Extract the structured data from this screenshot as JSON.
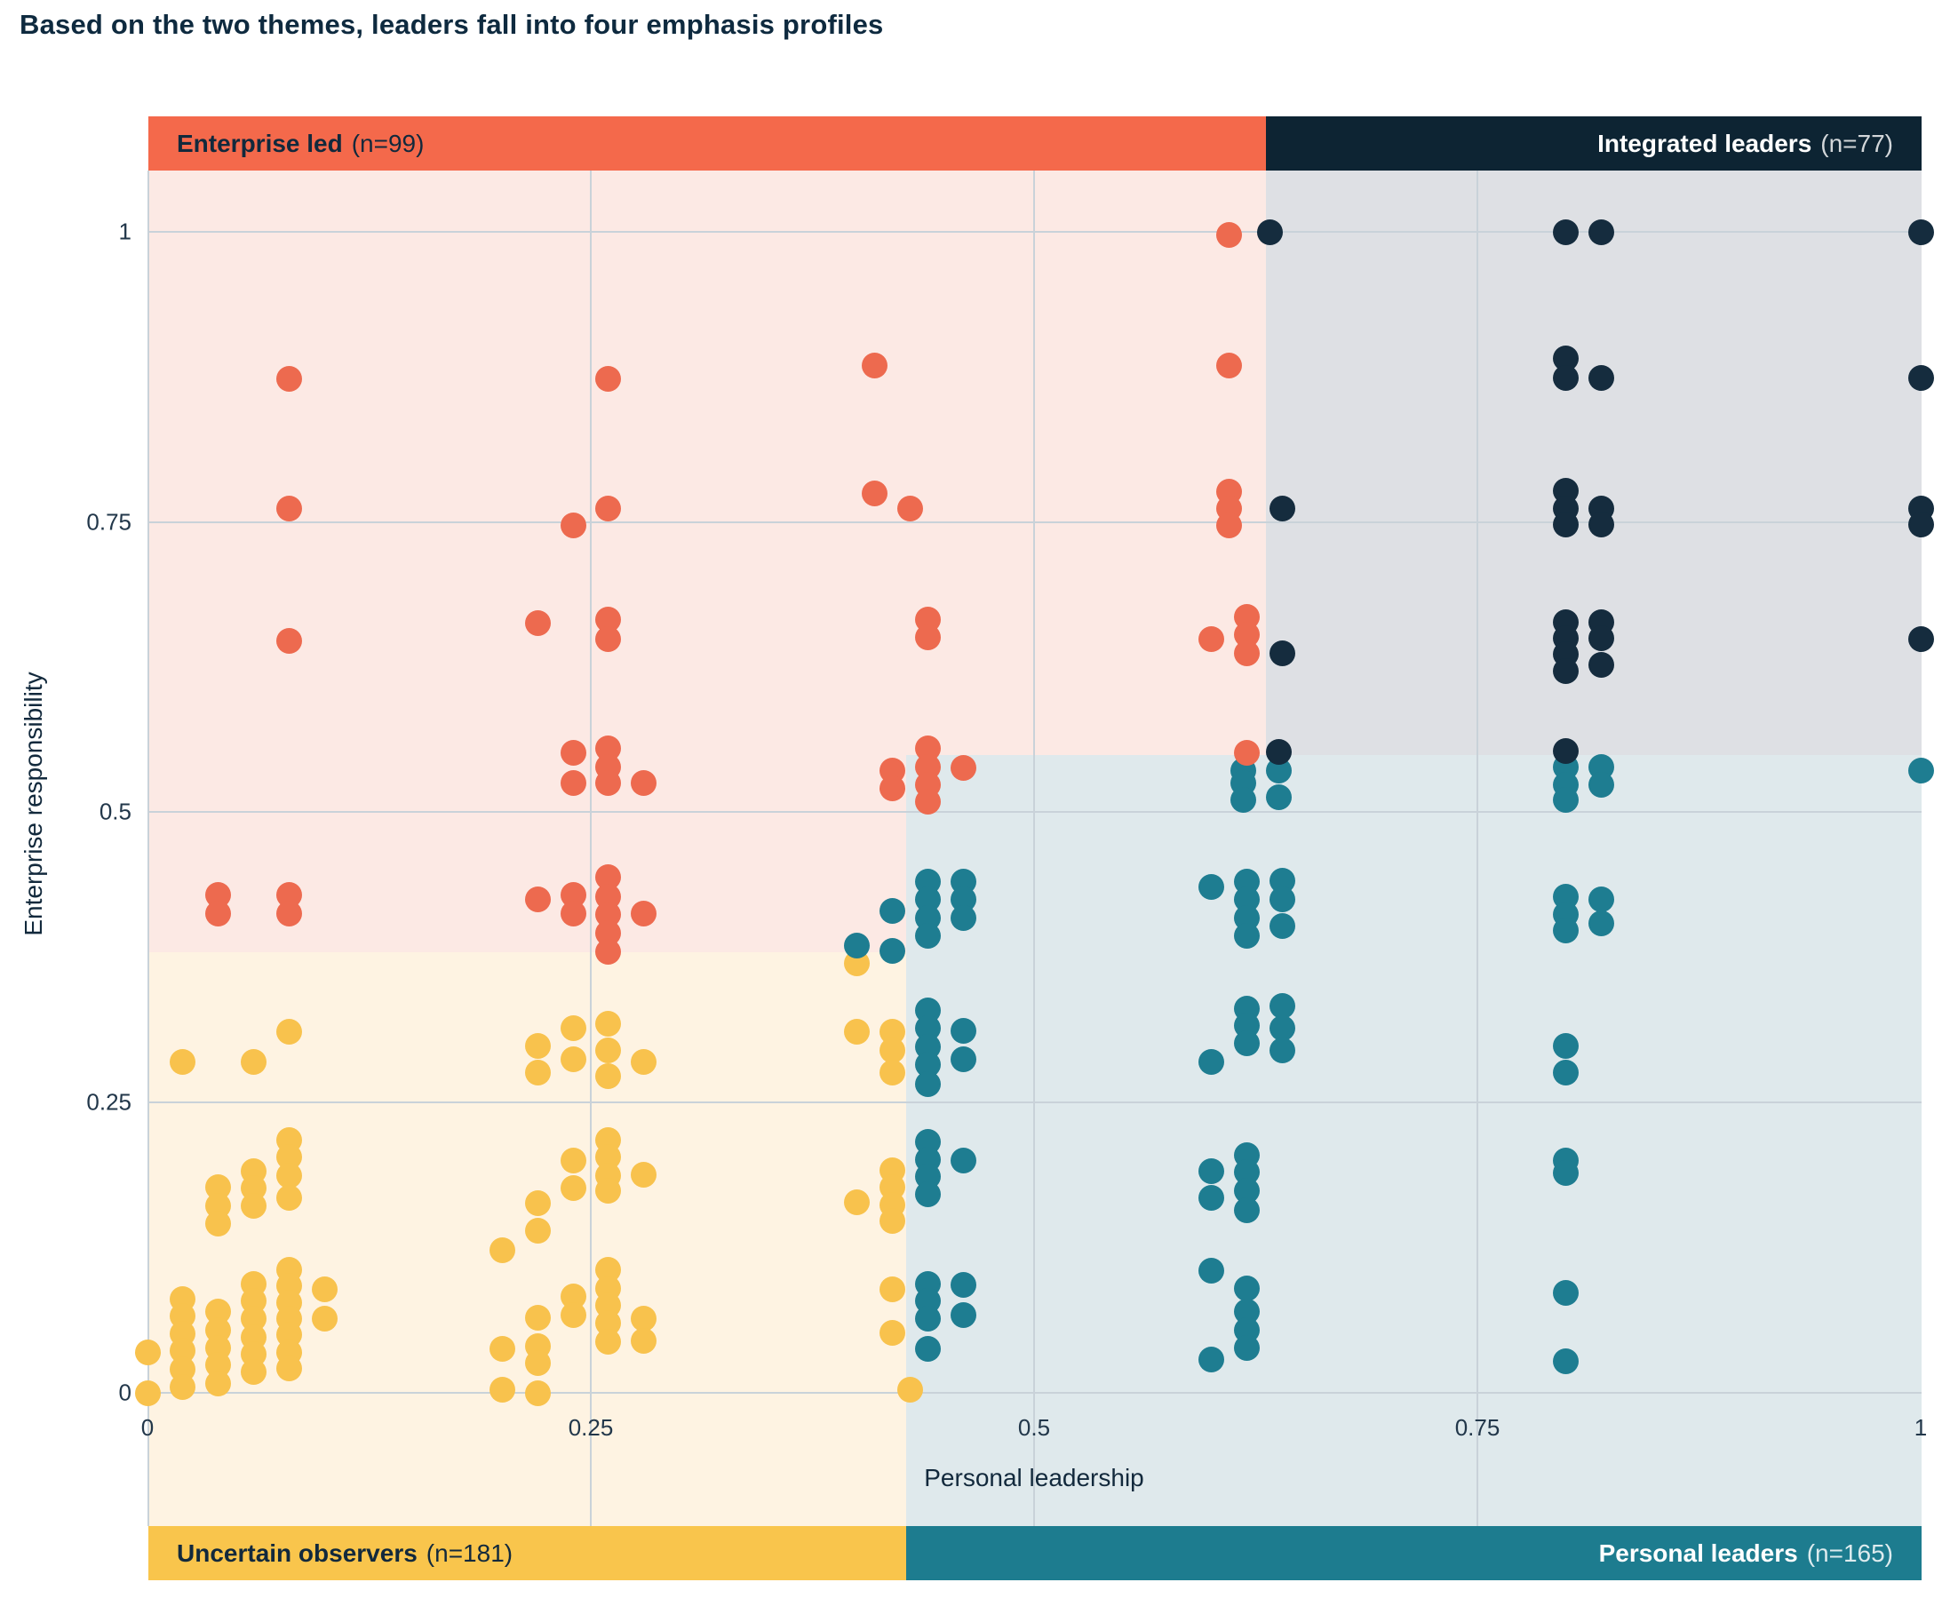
{
  "title": "Based on the two themes, leaders fall into four emphasis profiles",
  "axes": {
    "x_label": "Personal leadership",
    "y_label": "Enterprise responsibility",
    "x_ticks": [
      "0",
      "0.25",
      "0.5",
      "0.75",
      "1"
    ],
    "y_ticks": [
      "1",
      "0.75",
      "0.5",
      "0.25",
      "0"
    ]
  },
  "quadrants": {
    "enterprise_led": {
      "label": "Enterprise led",
      "n_label": "(n=99)",
      "band_color": "#f4694b",
      "fill_color": "#fce9e4"
    },
    "integrated_leaders": {
      "label": "Integrated leaders",
      "n_label": "(n=77)",
      "band_color": "#0d2433",
      "fill_color": "#dee0e4"
    },
    "uncertain_observers": {
      "label": "Uncertain observers",
      "n_label": "(n=181)",
      "band_color": "#f9c54c",
      "fill_color": "#fef3e2"
    },
    "personal_leaders": {
      "label": "Personal leaders",
      "n_label": "(n=165)",
      "band_color": "#1d7c8f",
      "fill_color": "#dfe9ec"
    }
  },
  "colors": {
    "title_text": "#0e2a3f",
    "gridline": "#c9d2d9",
    "dot_orange": "#ed6a4f",
    "dot_navy": "#152c3e",
    "dot_teal": "#1e7d91",
    "dot_yellow": "#f8c24d"
  },
  "chart_data": {
    "type": "scatter",
    "title": "Based on the two themes, leaders fall into four emphasis profiles",
    "xlabel": "Personal leadership",
    "ylabel": "Enterprise responsibility",
    "xlim": [
      0,
      1
    ],
    "ylim": [
      0,
      1
    ],
    "x_ticks": [
      0,
      0.25,
      0.5,
      0.75,
      1
    ],
    "y_ticks": [
      0,
      0.25,
      0.5,
      0.75,
      1
    ],
    "grid": true,
    "legend_position": "quadrant-bands",
    "quadrant_thresholds": {
      "top_x_split": 0.63,
      "bottom_x_split": 0.427,
      "left_y_split": 0.376,
      "right_y_split": 0.548
    },
    "series": [
      {
        "name": "Uncertain observers",
        "n": 181,
        "color": "#f8c24d",
        "points": [
          [
            0.02,
            0.285
          ],
          [
            0.06,
            0.285
          ],
          [
            0.08,
            0.311
          ],
          [
            0.22,
            0.299
          ],
          [
            0.22,
            0.276
          ],
          [
            0.24,
            0.314
          ],
          [
            0.24,
            0.287
          ],
          [
            0.26,
            0.318
          ],
          [
            0.26,
            0.295
          ],
          [
            0.26,
            0.273
          ],
          [
            0.28,
            0.285
          ],
          [
            0.4,
            0.311
          ],
          [
            0.42,
            0.311
          ],
          [
            0.42,
            0.295
          ],
          [
            0.42,
            0.276
          ],
          [
            0.4,
            0.37
          ],
          [
            0.04,
            0.177
          ],
          [
            0.04,
            0.161
          ],
          [
            0.04,
            0.146
          ],
          [
            0.06,
            0.191
          ],
          [
            0.06,
            0.176
          ],
          [
            0.06,
            0.161
          ],
          [
            0.08,
            0.218
          ],
          [
            0.08,
            0.203
          ],
          [
            0.08,
            0.187
          ],
          [
            0.08,
            0.168
          ],
          [
            0.22,
            0.163
          ],
          [
            0.24,
            0.2
          ],
          [
            0.24,
            0.176
          ],
          [
            0.26,
            0.218
          ],
          [
            0.26,
            0.203
          ],
          [
            0.26,
            0.187
          ],
          [
            0.26,
            0.174
          ],
          [
            0.28,
            0.188
          ],
          [
            0.2,
            0.123
          ],
          [
            0.22,
            0.14
          ],
          [
            0.4,
            0.164
          ],
          [
            0.42,
            0.192
          ],
          [
            0.42,
            0.177
          ],
          [
            0.42,
            0.162
          ],
          [
            0.42,
            0.148
          ],
          [
            0.0,
            0.035
          ],
          [
            0.0,
            0.0
          ],
          [
            0.02,
            0.081
          ],
          [
            0.02,
            0.066
          ],
          [
            0.02,
            0.051
          ],
          [
            0.02,
            0.036
          ],
          [
            0.02,
            0.02
          ],
          [
            0.02,
            0.005
          ],
          [
            0.04,
            0.07
          ],
          [
            0.04,
            0.054
          ],
          [
            0.04,
            0.039
          ],
          [
            0.04,
            0.024
          ],
          [
            0.04,
            0.008
          ],
          [
            0.06,
            0.094
          ],
          [
            0.06,
            0.079
          ],
          [
            0.06,
            0.064
          ],
          [
            0.06,
            0.048
          ],
          [
            0.06,
            0.033
          ],
          [
            0.06,
            0.018
          ],
          [
            0.08,
            0.106
          ],
          [
            0.08,
            0.092
          ],
          [
            0.08,
            0.078
          ],
          [
            0.08,
            0.064
          ],
          [
            0.08,
            0.05
          ],
          [
            0.08,
            0.035
          ],
          [
            0.08,
            0.021
          ],
          [
            0.1,
            0.089
          ],
          [
            0.1,
            0.064
          ],
          [
            0.2,
            0.038
          ],
          [
            0.2,
            0.003
          ],
          [
            0.22,
            0.065
          ],
          [
            0.22,
            0.04
          ],
          [
            0.22,
            0.026
          ],
          [
            0.22,
            0.0
          ],
          [
            0.24,
            0.083
          ],
          [
            0.24,
            0.067
          ],
          [
            0.26,
            0.106
          ],
          [
            0.26,
            0.09
          ],
          [
            0.26,
            0.075
          ],
          [
            0.26,
            0.06
          ],
          [
            0.26,
            0.044
          ],
          [
            0.28,
            0.064
          ],
          [
            0.28,
            0.045
          ],
          [
            0.42,
            0.089
          ],
          [
            0.42,
            0.052
          ],
          [
            0.43,
            0.003
          ]
        ]
      },
      {
        "name": "Personal leaders",
        "n": 165,
        "color": "#1e7d91",
        "points": [
          [
            0.618,
            0.536
          ],
          [
            0.618,
            0.525
          ],
          [
            0.618,
            0.511
          ],
          [
            0.638,
            0.536
          ],
          [
            0.638,
            0.513
          ],
          [
            0.8,
            0.539
          ],
          [
            0.8,
            0.524
          ],
          [
            0.8,
            0.511
          ],
          [
            0.82,
            0.539
          ],
          [
            0.82,
            0.524
          ],
          [
            1.0,
            0.536
          ],
          [
            0.4,
            0.385
          ],
          [
            0.42,
            0.415
          ],
          [
            0.42,
            0.381
          ],
          [
            0.44,
            0.44
          ],
          [
            0.44,
            0.425
          ],
          [
            0.44,
            0.409
          ],
          [
            0.44,
            0.394
          ],
          [
            0.46,
            0.44
          ],
          [
            0.46,
            0.425
          ],
          [
            0.46,
            0.409
          ],
          [
            0.6,
            0.436
          ],
          [
            0.62,
            0.44
          ],
          [
            0.62,
            0.425
          ],
          [
            0.62,
            0.409
          ],
          [
            0.62,
            0.394
          ],
          [
            0.64,
            0.441
          ],
          [
            0.64,
            0.425
          ],
          [
            0.64,
            0.402
          ],
          [
            0.8,
            0.427
          ],
          [
            0.8,
            0.412
          ],
          [
            0.8,
            0.398
          ],
          [
            0.82,
            0.425
          ],
          [
            0.82,
            0.404
          ],
          [
            0.44,
            0.329
          ],
          [
            0.44,
            0.314
          ],
          [
            0.44,
            0.298
          ],
          [
            0.44,
            0.283
          ],
          [
            0.44,
            0.266
          ],
          [
            0.46,
            0.312
          ],
          [
            0.46,
            0.287
          ],
          [
            0.62,
            0.331
          ],
          [
            0.62,
            0.316
          ],
          [
            0.62,
            0.301
          ],
          [
            0.64,
            0.333
          ],
          [
            0.64,
            0.314
          ],
          [
            0.64,
            0.295
          ],
          [
            0.6,
            0.285
          ],
          [
            0.8,
            0.299
          ],
          [
            0.8,
            0.276
          ],
          [
            0.44,
            0.216
          ],
          [
            0.44,
            0.201
          ],
          [
            0.44,
            0.186
          ],
          [
            0.44,
            0.171
          ],
          [
            0.46,
            0.2
          ],
          [
            0.6,
            0.191
          ],
          [
            0.6,
            0.168
          ],
          [
            0.62,
            0.205
          ],
          [
            0.62,
            0.19
          ],
          [
            0.62,
            0.174
          ],
          [
            0.62,
            0.157
          ],
          [
            0.8,
            0.2
          ],
          [
            0.8,
            0.189
          ],
          [
            0.44,
            0.094
          ],
          [
            0.44,
            0.079
          ],
          [
            0.44,
            0.064
          ],
          [
            0.44,
            0.038
          ],
          [
            0.46,
            0.093
          ],
          [
            0.46,
            0.067
          ],
          [
            0.6,
            0.105
          ],
          [
            0.62,
            0.09
          ],
          [
            0.62,
            0.07
          ],
          [
            0.62,
            0.054
          ],
          [
            0.62,
            0.039
          ],
          [
            0.6,
            0.029
          ],
          [
            0.8,
            0.086
          ],
          [
            0.8,
            0.027
          ]
        ]
      },
      {
        "name": "Enterprise led",
        "n": 99,
        "color": "#ed6a4f",
        "points": [
          [
            0.08,
            0.873
          ],
          [
            0.26,
            0.873
          ],
          [
            0.41,
            0.885
          ],
          [
            0.61,
            0.885
          ],
          [
            0.61,
            0.997
          ],
          [
            0.08,
            0.762
          ],
          [
            0.26,
            0.762
          ],
          [
            0.24,
            0.747
          ],
          [
            0.41,
            0.775
          ],
          [
            0.43,
            0.762
          ],
          [
            0.61,
            0.776
          ],
          [
            0.61,
            0.762
          ],
          [
            0.61,
            0.747
          ],
          [
            0.08,
            0.648
          ],
          [
            0.22,
            0.663
          ],
          [
            0.26,
            0.666
          ],
          [
            0.26,
            0.649
          ],
          [
            0.44,
            0.666
          ],
          [
            0.44,
            0.651
          ],
          [
            0.6,
            0.649
          ],
          [
            0.62,
            0.668
          ],
          [
            0.62,
            0.653
          ],
          [
            0.62,
            0.637
          ],
          [
            0.24,
            0.551
          ],
          [
            0.24,
            0.525
          ],
          [
            0.26,
            0.555
          ],
          [
            0.26,
            0.539
          ],
          [
            0.26,
            0.525
          ],
          [
            0.28,
            0.525
          ],
          [
            0.42,
            0.536
          ],
          [
            0.42,
            0.521
          ],
          [
            0.44,
            0.555
          ],
          [
            0.44,
            0.539
          ],
          [
            0.44,
            0.524
          ],
          [
            0.44,
            0.509
          ],
          [
            0.46,
            0.538
          ],
          [
            0.62,
            0.551
          ],
          [
            0.04,
            0.429
          ],
          [
            0.04,
            0.413
          ],
          [
            0.08,
            0.429
          ],
          [
            0.08,
            0.413
          ],
          [
            0.22,
            0.425
          ],
          [
            0.24,
            0.429
          ],
          [
            0.24,
            0.413
          ],
          [
            0.26,
            0.444
          ],
          [
            0.26,
            0.427
          ],
          [
            0.26,
            0.412
          ],
          [
            0.26,
            0.396
          ],
          [
            0.26,
            0.38
          ],
          [
            0.28,
            0.413
          ]
        ]
      },
      {
        "name": "Integrated leaders",
        "n": 77,
        "color": "#152c3e",
        "points": [
          [
            0.633,
            1.0
          ],
          [
            0.8,
            1.0
          ],
          [
            0.82,
            1.0
          ],
          [
            1.0,
            1.0
          ],
          [
            0.8,
            0.891
          ],
          [
            0.8,
            0.874
          ],
          [
            0.82,
            0.874
          ],
          [
            1.0,
            0.874
          ],
          [
            0.8,
            0.777
          ],
          [
            0.8,
            0.762
          ],
          [
            0.8,
            0.748
          ],
          [
            0.82,
            0.762
          ],
          [
            0.82,
            0.748
          ],
          [
            1.0,
            0.762
          ],
          [
            1.0,
            0.748
          ],
          [
            0.64,
            0.762
          ],
          [
            0.64,
            0.637
          ],
          [
            0.8,
            0.664
          ],
          [
            0.8,
            0.65
          ],
          [
            0.8,
            0.636
          ],
          [
            0.8,
            0.622
          ],
          [
            0.82,
            0.664
          ],
          [
            0.82,
            0.65
          ],
          [
            0.82,
            0.627
          ],
          [
            1.0,
            0.649
          ],
          [
            0.638,
            0.552
          ],
          [
            0.8,
            0.553
          ]
        ]
      }
    ]
  }
}
